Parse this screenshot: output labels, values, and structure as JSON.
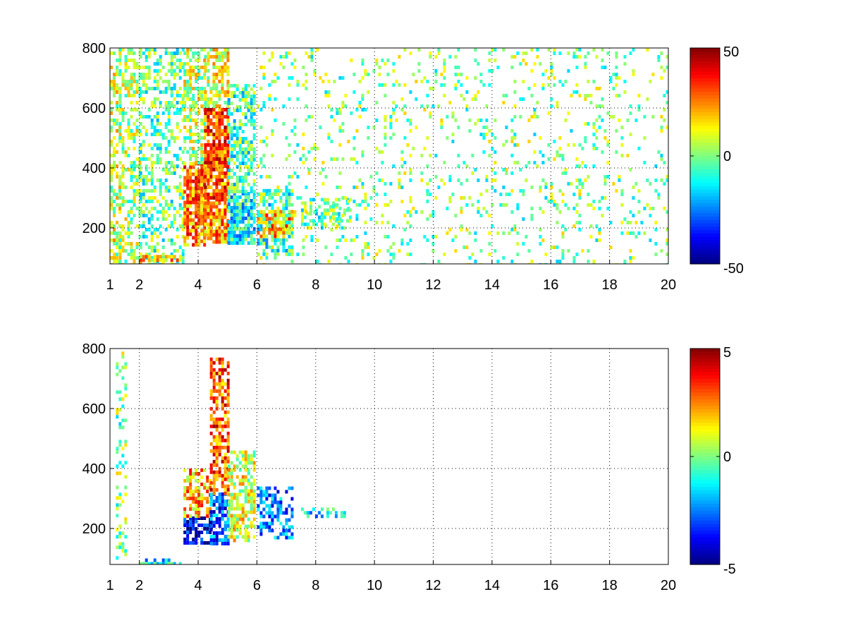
{
  "chart_data": [
    {
      "type": "heatmap",
      "panel": "top",
      "x_ticks": [
        "1",
        "2",
        "4",
        "6",
        "8",
        "10",
        "12",
        "14",
        "16",
        "18",
        "20"
      ],
      "y_ticks": [
        "200",
        "400",
        "600",
        "800"
      ],
      "xlim": [
        1,
        20
      ],
      "ylim": [
        80,
        800
      ],
      "colorbar": {
        "min": -50,
        "max": 50,
        "ticks": [
          "50",
          "0",
          "-50"
        ],
        "colormap": "jet"
      },
      "grid": true,
      "cells": [
        {
          "x": [
            1.0,
            1.3
          ],
          "y": [
            80,
            800
          ],
          "v": 8,
          "density": 0.5
        },
        {
          "x": [
            1.3,
            2.0
          ],
          "y": [
            80,
            800
          ],
          "v": 4,
          "density": 0.45
        },
        {
          "x": [
            2.0,
            3.5
          ],
          "y": [
            80,
            800
          ],
          "v": -3,
          "density": 0.4
        },
        {
          "x": [
            2.0,
            3.5
          ],
          "y": [
            80,
            110
          ],
          "v": 18,
          "density": 0.7
        },
        {
          "x": [
            3.5,
            4.2
          ],
          "y": [
            140,
            420
          ],
          "v": 25,
          "density": 0.85
        },
        {
          "x": [
            3.5,
            4.2
          ],
          "y": [
            420,
            800
          ],
          "v": 6,
          "density": 0.55
        },
        {
          "x": [
            4.2,
            5.0
          ],
          "y": [
            150,
            300
          ],
          "v": 22,
          "density": 0.85
        },
        {
          "x": [
            4.2,
            5.0
          ],
          "y": [
            300,
            600
          ],
          "v": 30,
          "density": 0.85
        },
        {
          "x": [
            4.2,
            5.0
          ],
          "y": [
            600,
            800
          ],
          "v": 10,
          "density": 0.6
        },
        {
          "x": [
            5.0,
            5.9
          ],
          "y": [
            150,
            320
          ],
          "v": -12,
          "density": 0.8
        },
        {
          "x": [
            5.0,
            5.9
          ],
          "y": [
            320,
            680
          ],
          "v": -6,
          "density": 0.6
        },
        {
          "x": [
            6.0,
            7.2
          ],
          "y": [
            110,
            330
          ],
          "v": -8,
          "density": 0.6
        },
        {
          "x": [
            6.0,
            7.2
          ],
          "y": [
            170,
            260
          ],
          "v": 20,
          "density": 0.55
        },
        {
          "x": [
            7.5,
            9.2
          ],
          "y": [
            200,
            300
          ],
          "v": -3,
          "density": 0.5
        },
        {
          "x": [
            6.0,
            20.0
          ],
          "y": [
            80,
            800
          ],
          "v": 0,
          "density": 0.12
        }
      ]
    },
    {
      "type": "heatmap",
      "panel": "bottom",
      "x_ticks": [
        "1",
        "2",
        "4",
        "6",
        "8",
        "10",
        "12",
        "14",
        "16",
        "18",
        "20"
      ],
      "y_ticks": [
        "200",
        "400",
        "600",
        "800"
      ],
      "xlim": [
        1,
        20
      ],
      "ylim": [
        80,
        800
      ],
      "colorbar": {
        "min": -5,
        "max": 5,
        "ticks": [
          "5",
          "0",
          "-5"
        ],
        "colormap": "jet"
      },
      "grid": true,
      "cells": [
        {
          "x": [
            1.2,
            1.5
          ],
          "y": [
            100,
            790
          ],
          "v": 0,
          "density": 0.25
        },
        {
          "x": [
            2.0,
            3.4
          ],
          "y": [
            80,
            100
          ],
          "v": -1.5,
          "density": 0.5
        },
        {
          "x": [
            3.5,
            4.4
          ],
          "y": [
            150,
            240
          ],
          "v": -4,
          "density": 0.75
        },
        {
          "x": [
            3.5,
            4.4
          ],
          "y": [
            240,
            400
          ],
          "v": 2,
          "density": 0.6
        },
        {
          "x": [
            4.4,
            5.0
          ],
          "y": [
            150,
            320
          ],
          "v": -3,
          "density": 0.7
        },
        {
          "x": [
            4.4,
            5.0
          ],
          "y": [
            320,
            770
          ],
          "v": 3,
          "density": 0.6
        },
        {
          "x": [
            5.0,
            5.9
          ],
          "y": [
            160,
            460
          ],
          "v": 1,
          "density": 0.6
        },
        {
          "x": [
            6.0,
            7.2
          ],
          "y": [
            170,
            340
          ],
          "v": -2.5,
          "density": 0.55
        },
        {
          "x": [
            7.5,
            9.0
          ],
          "y": [
            240,
            270
          ],
          "v": -1.5,
          "density": 0.5
        }
      ]
    }
  ]
}
